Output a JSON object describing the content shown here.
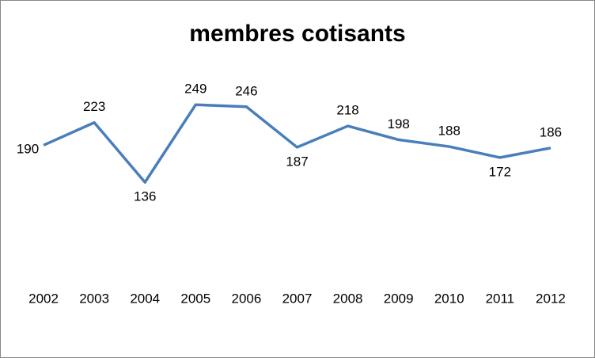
{
  "chart_data": {
    "type": "line",
    "title": "membres cotisants",
    "categories": [
      "2002",
      "2003",
      "2004",
      "2005",
      "2006",
      "2007",
      "2008",
      "2009",
      "2010",
      "2011",
      "2012"
    ],
    "values": [
      190,
      223,
      136,
      249,
      246,
      187,
      218,
      198,
      188,
      172,
      186
    ],
    "color": "#4a7ebb",
    "ylim": [
      0,
      300
    ]
  }
}
